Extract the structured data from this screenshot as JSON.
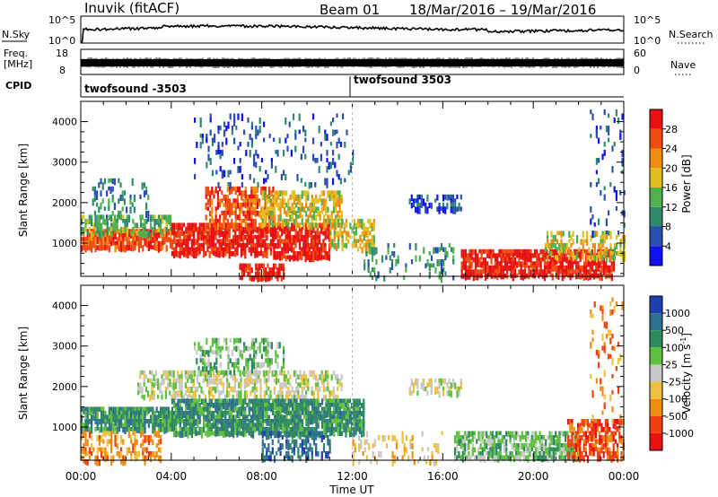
{
  "header": {
    "station": "Inuvik (fitACF)",
    "beam": "Beam 01",
    "date_range": "18/Mar/2016 – 19/Mar/2016"
  },
  "panels": {
    "nsky": {
      "label": "N.Sky",
      "left_ticks": [
        "10^5",
        "10^0"
      ],
      "right_ticks": [
        "10^5",
        "10^0"
      ],
      "right_label": "N.Search"
    },
    "freq": {
      "label_line1": "Freq.",
      "label_line2": "[MHz]",
      "left_ticks": [
        "18",
        "8"
      ],
      "right_ticks": [
        "60",
        "0"
      ],
      "right_label": "Nave"
    },
    "cpid": {
      "label": "CPID",
      "segments": [
        {
          "name": "twofsound -3503",
          "start_hour": 0
        },
        {
          "name": "twofsound 3503",
          "start_hour": 12
        }
      ]
    }
  },
  "chart_data": [
    {
      "type": "heatmap",
      "title": "",
      "xlabel": "",
      "ylabel": "Slant Range [km]",
      "x_ticks": [
        "00:00",
        "04:00",
        "08:00",
        "12:00",
        "16:00",
        "20:00",
        "00:00"
      ],
      "xlim_hours": [
        0,
        24
      ],
      "y_ticks": [
        1000,
        2000,
        3000,
        4000
      ],
      "ylim": [
        180,
        4500
      ],
      "colorbar": {
        "label": "Power [dB]",
        "ticks": [
          4,
          8,
          12,
          16,
          20,
          24,
          28
        ],
        "range": [
          0,
          32
        ],
        "colors": [
          "#1010f0",
          "#2a4fb0",
          "#2f8a6e",
          "#4fb04f",
          "#e0c020",
          "#f08c10",
          "#f04a10",
          "#e81010"
        ]
      },
      "regions": [
        {
          "t0": 0.0,
          "t1": 4.0,
          "r0": 900,
          "r1": 1350,
          "level": 6,
          "density": 0.85
        },
        {
          "t0": 0.0,
          "t1": 4.0,
          "r0": 1300,
          "r1": 1700,
          "level": 3,
          "density": 0.55
        },
        {
          "t0": 0.5,
          "t1": 3.0,
          "r0": 1700,
          "r1": 2600,
          "level": 2,
          "density": 0.25
        },
        {
          "t0": 4.0,
          "t1": 8.5,
          "r0": 800,
          "r1": 1500,
          "level": 7,
          "density": 0.85
        },
        {
          "t0": 5.5,
          "t1": 8.5,
          "r0": 1500,
          "r1": 2400,
          "level": 6,
          "density": 0.6
        },
        {
          "t0": 7.0,
          "t1": 9.0,
          "r0": 200,
          "r1": 500,
          "level": 7,
          "density": 0.8
        },
        {
          "t0": 8.5,
          "t1": 11.0,
          "r0": 700,
          "r1": 1500,
          "level": 7,
          "density": 0.8
        },
        {
          "t0": 8.0,
          "t1": 11.5,
          "r0": 1500,
          "r1": 2300,
          "level": 4,
          "density": 0.55
        },
        {
          "t0": 11.0,
          "t1": 13.0,
          "r0": 900,
          "r1": 1600,
          "level": 4,
          "density": 0.6
        },
        {
          "t0": 12.5,
          "t1": 16.5,
          "r0": 200,
          "r1": 1000,
          "level": 2,
          "density": 0.18
        },
        {
          "t0": 14.5,
          "t1": 16.8,
          "r0": 1900,
          "r1": 2200,
          "level": 1,
          "density": 0.5
        },
        {
          "t0": 5.0,
          "t1": 12.0,
          "r0": 2500,
          "r1": 4200,
          "level": 1,
          "density": 0.14
        },
        {
          "t0": 16.8,
          "t1": 23.6,
          "r0": 250,
          "r1": 850,
          "level": 7,
          "density": 0.8
        },
        {
          "t0": 20.5,
          "t1": 24.0,
          "r0": 700,
          "r1": 1300,
          "level": 4,
          "density": 0.45
        },
        {
          "t0": 22.5,
          "t1": 24.0,
          "r0": 1300,
          "r1": 4300,
          "level": 1,
          "density": 0.12
        }
      ]
    },
    {
      "type": "heatmap",
      "title": "",
      "xlabel": "Time UT",
      "ylabel": "Slant Range [km]",
      "x_ticks": [
        "00:00",
        "04:00",
        "08:00",
        "12:00",
        "16:00",
        "20:00",
        "00:00"
      ],
      "xlim_hours": [
        0,
        24
      ],
      "y_ticks": [
        1000,
        2000,
        3000,
        4000
      ],
      "ylim": [
        180,
        4500
      ],
      "colorbar": {
        "label": "Velocity [m s^-1]",
        "ticks": [
          1000,
          500,
          100,
          25,
          -25,
          -100,
          -500,
          -1000
        ],
        "colors": [
          "#1e3fb0",
          "#2f6f8f",
          "#2f8a5e",
          "#5fc040",
          "#c8c8c8",
          "#f0c040",
          "#f08c10",
          "#f04010",
          "#e81010"
        ]
      },
      "regions": [
        {
          "t0": 0.0,
          "t1": 4.0,
          "r0": 1000,
          "r1": 1500,
          "level": 2,
          "density": 0.85
        },
        {
          "t0": 0.0,
          "t1": 3.5,
          "r0": 200,
          "r1": 900,
          "level": 6,
          "density": 0.4
        },
        {
          "t0": 2.5,
          "t1": 11.5,
          "r0": 1800,
          "r1": 2400,
          "level": 4,
          "density": 0.55
        },
        {
          "t0": 4.0,
          "t1": 12.5,
          "r0": 900,
          "r1": 1700,
          "level": 2,
          "density": 0.85
        },
        {
          "t0": 5.0,
          "t1": 9.0,
          "r0": 2400,
          "r1": 3200,
          "level": 3,
          "density": 0.35
        },
        {
          "t0": 8.0,
          "t1": 11.0,
          "r0": 300,
          "r1": 900,
          "level": 1,
          "density": 0.4
        },
        {
          "t0": 12.0,
          "t1": 16.0,
          "r0": 200,
          "r1": 900,
          "level": 5,
          "density": 0.2
        },
        {
          "t0": 14.5,
          "t1": 16.8,
          "r0": 1900,
          "r1": 2200,
          "level": 4,
          "density": 0.5
        },
        {
          "t0": 16.5,
          "t1": 22.0,
          "r0": 250,
          "r1": 900,
          "level": 3,
          "density": 0.75
        },
        {
          "t0": 21.5,
          "t1": 24.0,
          "r0": 250,
          "r1": 1200,
          "level": 7,
          "density": 0.6
        },
        {
          "t0": 22.5,
          "t1": 24.0,
          "r0": 1200,
          "r1": 4200,
          "level": 6,
          "density": 0.12
        }
      ]
    }
  ]
}
